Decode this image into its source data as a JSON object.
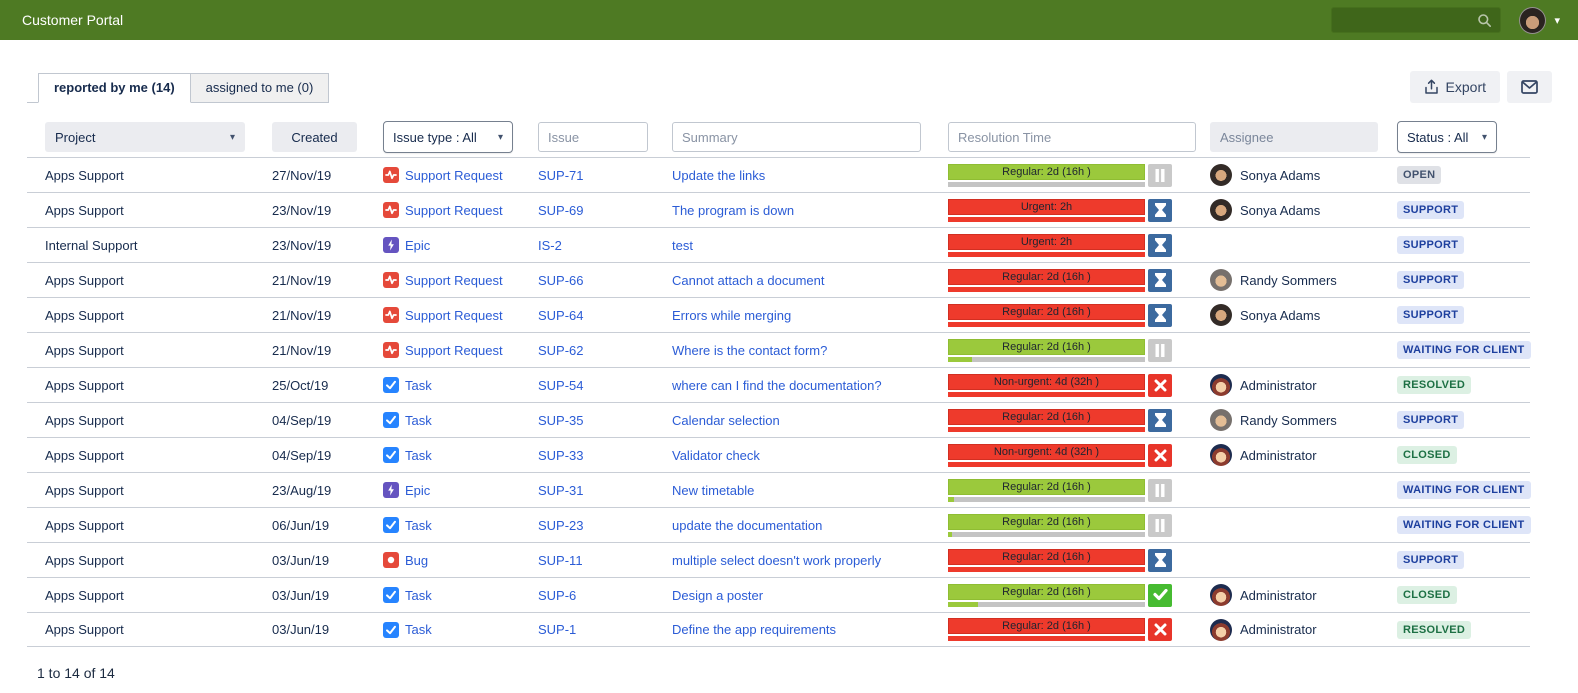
{
  "header": {
    "title": "Customer Portal",
    "search_placeholder": "",
    "icons": [
      "search-icon",
      "user-avatar",
      "chevron-down-icon"
    ]
  },
  "tabs": [
    {
      "label": "reported by me (14)",
      "active": true
    },
    {
      "label": "assigned to me (0)",
      "active": false
    }
  ],
  "toolbar": {
    "export_label": "Export",
    "icons": [
      "export-icon",
      "mail-icon"
    ]
  },
  "filters": {
    "project_label": "Project",
    "created_label": "Created",
    "issue_type_label": "Issue type : All",
    "issue_placeholder": "Issue",
    "summary_placeholder": "Summary",
    "resolution_placeholder": "Resolution Time",
    "assignee_placeholder": "Assignee",
    "status_label": "Status : All"
  },
  "colors": {
    "topbar": "#4e7a23",
    "link_blue": "#2b5cd6",
    "sla_red": "#ee3a2c",
    "sla_green": "#9bc93c",
    "sla_track_gray": "#c4c4c4",
    "icon_hourglass_blue": "#3c6a9f",
    "icon_pause_gray": "#c9c9c9",
    "icon_x_red": "#e8352a",
    "icon_check_green": "#46bb31",
    "type_support_request": "#e5493a",
    "type_epic": "#6554c0",
    "type_task": "#2684ff",
    "type_bug": "#e5493a"
  },
  "table": {
    "rows": [
      {
        "project": "Apps Support",
        "created": "27/Nov/19",
        "type": {
          "label": "Support Request",
          "icon": "pulse-icon",
          "key": "support"
        },
        "issue": "SUP-71",
        "summary": "Update the links",
        "sla": {
          "variant": "green",
          "label": "Regular: 2d (16h )",
          "progress": 0,
          "fill": "green",
          "icon": "pause-icon"
        },
        "assignee": {
          "name": "Sonya Adams",
          "avatar": "sonya"
        },
        "status": {
          "label": "OPEN",
          "tone": "gray"
        }
      },
      {
        "project": "Apps Support",
        "created": "23/Nov/19",
        "type": {
          "label": "Support Request",
          "icon": "pulse-icon",
          "key": "support"
        },
        "issue": "SUP-69",
        "summary": "The program is down",
        "sla": {
          "variant": "red",
          "label": "Urgent: 2h",
          "progress": 100,
          "fill": "red",
          "icon": "hourglass-icon"
        },
        "assignee": {
          "name": "Sonya Adams",
          "avatar": "sonya"
        },
        "status": {
          "label": "SUPPORT",
          "tone": "blue"
        }
      },
      {
        "project": "Internal Support",
        "created": "23/Nov/19",
        "type": {
          "label": "Epic",
          "icon": "lightning-icon",
          "key": "epic"
        },
        "issue": "IS-2",
        "summary": "test",
        "sla": {
          "variant": "red",
          "label": "Urgent: 2h",
          "progress": 100,
          "fill": "red",
          "icon": "hourglass-icon"
        },
        "assignee": null,
        "status": {
          "label": "SUPPORT",
          "tone": "blue"
        }
      },
      {
        "project": "Apps Support",
        "created": "21/Nov/19",
        "type": {
          "label": "Support Request",
          "icon": "pulse-icon",
          "key": "support"
        },
        "issue": "SUP-66",
        "summary": "Cannot attach a document",
        "sla": {
          "variant": "red",
          "label": "Regular: 2d (16h )",
          "progress": 100,
          "fill": "red",
          "icon": "hourglass-icon"
        },
        "assignee": {
          "name": "Randy Sommers",
          "avatar": "randy"
        },
        "status": {
          "label": "SUPPORT",
          "tone": "blue"
        }
      },
      {
        "project": "Apps Support",
        "created": "21/Nov/19",
        "type": {
          "label": "Support Request",
          "icon": "pulse-icon",
          "key": "support"
        },
        "issue": "SUP-64",
        "summary": "Errors while merging",
        "sla": {
          "variant": "red",
          "label": "Regular: 2d (16h )",
          "progress": 100,
          "fill": "red",
          "icon": "hourglass-icon"
        },
        "assignee": {
          "name": "Sonya Adams",
          "avatar": "sonya"
        },
        "status": {
          "label": "SUPPORT",
          "tone": "blue"
        }
      },
      {
        "project": "Apps Support",
        "created": "21/Nov/19",
        "type": {
          "label": "Support Request",
          "icon": "pulse-icon",
          "key": "support"
        },
        "issue": "SUP-62",
        "summary": "Where is the contact form?",
        "sla": {
          "variant": "green",
          "label": "Regular: 2d (16h )",
          "progress": 12,
          "fill": "green",
          "icon": "pause-icon"
        },
        "assignee": null,
        "status": {
          "label": "WAITING FOR CLIENT",
          "tone": "blue"
        }
      },
      {
        "project": "Apps Support",
        "created": "25/Oct/19",
        "type": {
          "label": "Task",
          "icon": "check-icon",
          "key": "task"
        },
        "issue": "SUP-54",
        "summary": "where can I find the documentation?",
        "sla": {
          "variant": "red",
          "label": "Non-urgent: 4d (32h )",
          "progress": 100,
          "fill": "red",
          "icon": "x-icon"
        },
        "assignee": {
          "name": "Administrator",
          "avatar": "admin"
        },
        "status": {
          "label": "RESOLVED",
          "tone": "green"
        }
      },
      {
        "project": "Apps Support",
        "created": "04/Sep/19",
        "type": {
          "label": "Task",
          "icon": "check-icon",
          "key": "task"
        },
        "issue": "SUP-35",
        "summary": "Calendar selection",
        "sla": {
          "variant": "red",
          "label": "Regular: 2d (16h )",
          "progress": 100,
          "fill": "red",
          "icon": "hourglass-icon"
        },
        "assignee": {
          "name": "Randy Sommers",
          "avatar": "randy"
        },
        "status": {
          "label": "SUPPORT",
          "tone": "blue"
        }
      },
      {
        "project": "Apps Support",
        "created": "04/Sep/19",
        "type": {
          "label": "Task",
          "icon": "check-icon",
          "key": "task"
        },
        "issue": "SUP-33",
        "summary": "Validator check",
        "sla": {
          "variant": "red",
          "label": "Non-urgent: 4d (32h )",
          "progress": 100,
          "fill": "red",
          "icon": "x-icon"
        },
        "assignee": {
          "name": "Administrator",
          "avatar": "admin"
        },
        "status": {
          "label": "CLOSED",
          "tone": "green"
        }
      },
      {
        "project": "Apps Support",
        "created": "23/Aug/19",
        "type": {
          "label": "Epic",
          "icon": "lightning-icon",
          "key": "epic"
        },
        "issue": "SUP-31",
        "summary": "New timetable",
        "sla": {
          "variant": "green",
          "label": "Regular: 2d (16h )",
          "progress": 3,
          "fill": "green",
          "icon": "pause-icon"
        },
        "assignee": null,
        "status": {
          "label": "WAITING FOR CLIENT",
          "tone": "blue"
        }
      },
      {
        "project": "Apps Support",
        "created": "06/Jun/19",
        "type": {
          "label": "Task",
          "icon": "check-icon",
          "key": "task"
        },
        "issue": "SUP-23",
        "summary": "update the documentation",
        "sla": {
          "variant": "green",
          "label": "Regular: 2d (16h )",
          "progress": 2,
          "fill": "green",
          "icon": "pause-icon"
        },
        "assignee": null,
        "status": {
          "label": "WAITING FOR CLIENT",
          "tone": "blue"
        }
      },
      {
        "project": "Apps Support",
        "created": "03/Jun/19",
        "type": {
          "label": "Bug",
          "icon": "dot-icon",
          "key": "bug"
        },
        "issue": "SUP-11",
        "summary": "multiple select doesn't work properly",
        "sla": {
          "variant": "red",
          "label": "Regular: 2d (16h )",
          "progress": 100,
          "fill": "red",
          "icon": "hourglass-icon"
        },
        "assignee": null,
        "status": {
          "label": "SUPPORT",
          "tone": "blue"
        }
      },
      {
        "project": "Apps Support",
        "created": "03/Jun/19",
        "type": {
          "label": "Task",
          "icon": "check-icon",
          "key": "task"
        },
        "issue": "SUP-6",
        "summary": "Design a poster",
        "sla": {
          "variant": "green",
          "label": "Regular: 2d (16h )",
          "progress": 15,
          "fill": "green",
          "icon": "check-circle-icon"
        },
        "assignee": {
          "name": "Administrator",
          "avatar": "admin"
        },
        "status": {
          "label": "CLOSED",
          "tone": "green"
        }
      },
      {
        "project": "Apps Support",
        "created": "03/Jun/19",
        "type": {
          "label": "Task",
          "icon": "check-icon",
          "key": "task"
        },
        "issue": "SUP-1",
        "summary": "Define the app requirements",
        "sla": {
          "variant": "red",
          "label": "Regular: 2d (16h )",
          "progress": 100,
          "fill": "red",
          "icon": "x-icon"
        },
        "assignee": {
          "name": "Administrator",
          "avatar": "admin"
        },
        "status": {
          "label": "RESOLVED",
          "tone": "green"
        }
      }
    ]
  },
  "footer": {
    "pagination": "1 to 14 of 14"
  }
}
